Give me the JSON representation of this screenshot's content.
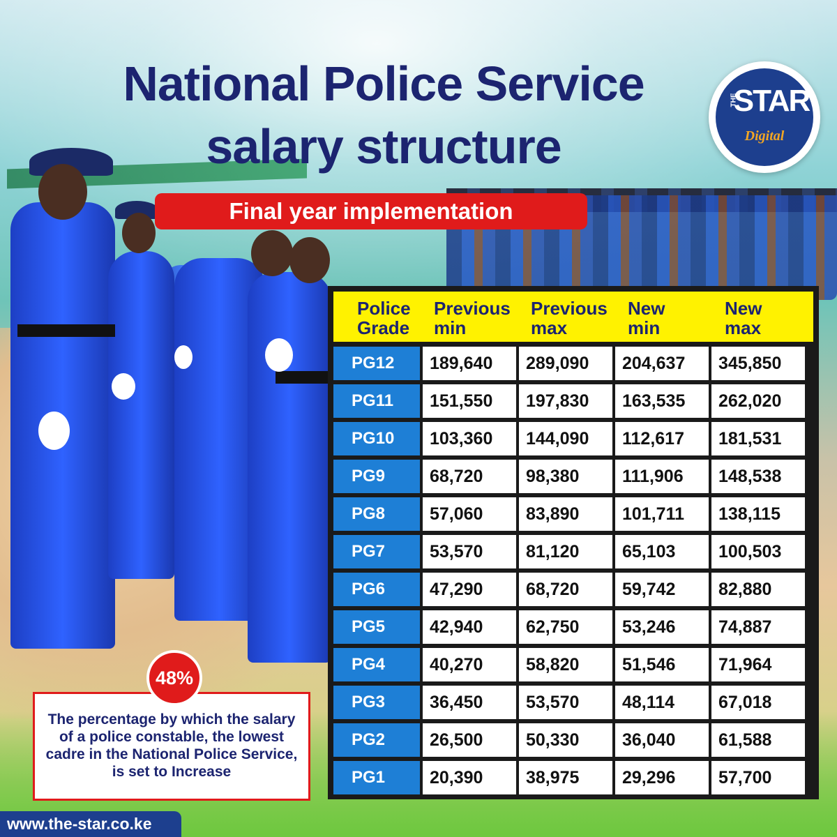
{
  "title_line1": "National Police Service",
  "title_line2": "salary structure",
  "subtitle": "Final year implementation",
  "logo": {
    "the": "THE",
    "star": "STAR",
    "digital": "Digital"
  },
  "table": {
    "headers": [
      [
        "Police",
        "Grade"
      ],
      [
        "Previous",
        "min"
      ],
      [
        "Previous",
        "max"
      ],
      [
        "New",
        "min"
      ],
      [
        "New",
        "max"
      ]
    ],
    "rows": [
      [
        "PG12",
        "189,640",
        "289,090",
        "204,637",
        "345,850"
      ],
      [
        "PG11",
        "151,550",
        "197,830",
        "163,535",
        "262,020"
      ],
      [
        "PG10",
        "103,360",
        "144,090",
        "112,617",
        "181,531"
      ],
      [
        "PG9",
        "68,720",
        "98,380",
        "111,906",
        "148,538"
      ],
      [
        "PG8",
        "57,060",
        "83,890",
        "101,711",
        "138,115"
      ],
      [
        "PG7",
        "53,570",
        "81,120",
        "65,103",
        "100,503"
      ],
      [
        "PG6",
        "47,290",
        "68,720",
        "59,742",
        "82,880"
      ],
      [
        "PG5",
        "42,940",
        "62,750",
        "53,246",
        "74,887"
      ],
      [
        "PG4",
        "40,270",
        "58,820",
        "51,546",
        "71,964"
      ],
      [
        "PG3",
        "36,450",
        "53,570",
        "48,114",
        "67,018"
      ],
      [
        "PG2",
        "26,500",
        "50,330",
        "36,040",
        "61,588"
      ],
      [
        "PG1",
        "20,390",
        "38,975",
        "29,296",
        "57,700"
      ]
    ]
  },
  "callout": {
    "badge": "48%",
    "text": "The percentage by which the salary of a police constable, the lowest cadre in the National Police Service, is set to Increase"
  },
  "footer_url": "www.the-star.co.ke",
  "colors": {
    "title": "#1c2470",
    "banner_red": "#e01b1b",
    "header_yellow": "#fff200",
    "grade_blue": "#1e7fd6",
    "logo_blue": "#1d3f8e",
    "logo_orange": "#f2a623"
  }
}
